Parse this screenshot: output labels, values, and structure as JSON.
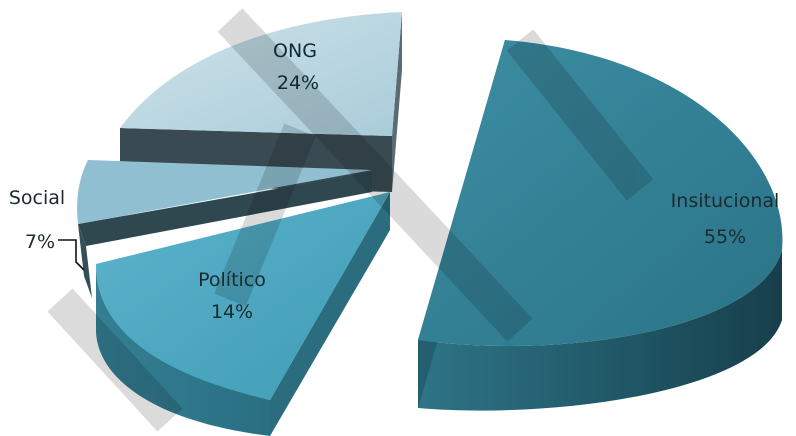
{
  "chart_data": {
    "type": "pie",
    "three_d": true,
    "exploded": true,
    "legend": "none",
    "slices": [
      {
        "name": "Insitucional",
        "value": 55,
        "label": "55%",
        "color": "#2f7f93"
      },
      {
        "name": "Político",
        "value": 14,
        "label": "14%",
        "color": "#4aa6bf"
      },
      {
        "name": "Social",
        "value": 7,
        "label": "7%",
        "color": "#8fc0d2"
      },
      {
        "name": "ONG",
        "value": 24,
        "label": "24%",
        "color": "#bcd8e3"
      }
    ]
  }
}
